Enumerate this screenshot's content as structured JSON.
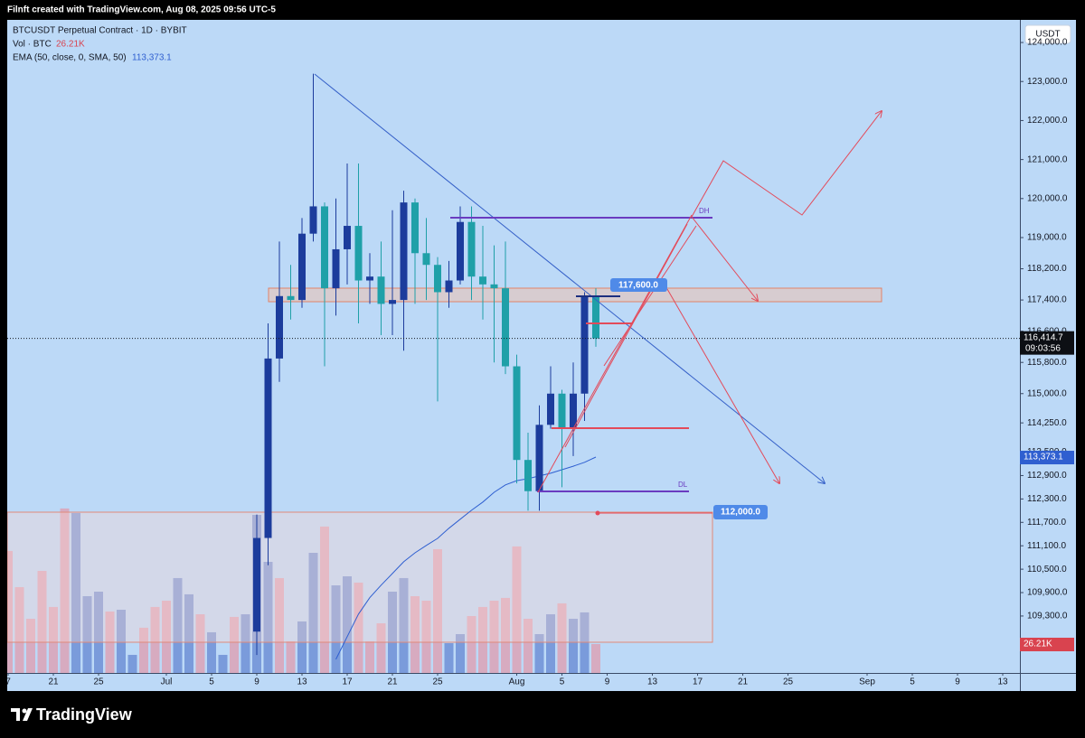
{
  "header": {
    "credit": "Filnft created with TradingView.com, Aug 08, 2025 09:56 UTC-5",
    "brand": "TradingView"
  },
  "chart_data": {
    "type": "candlestick",
    "title": "BTCUSDT Perpetual Contract · 1D · BYBIT",
    "currency": "USDT",
    "up_color": "#1c3c9c",
    "down_color": "#1fa0a8",
    "x": [
      8,
      9,
      10,
      11,
      12,
      13,
      14,
      15,
      16,
      17,
      18,
      19,
      20,
      21,
      22,
      23,
      24,
      25,
      26,
      27,
      28,
      29,
      30,
      31,
      32,
      33,
      34,
      35,
      36,
      37,
      38
    ],
    "open": [
      108900,
      111300,
      115900,
      117500,
      117400,
      119100,
      119800,
      117700,
      118700,
      119300,
      117900,
      118000,
      117300,
      117400,
      119900,
      118600,
      118300,
      117600,
      117900,
      119400,
      118000,
      117800,
      117700,
      115700,
      113300,
      112500,
      114200,
      115000,
      114100,
      115000,
      117500
    ],
    "high": [
      111900,
      116800,
      118900,
      118300,
      119500,
      123200,
      119900,
      120000,
      120900,
      120900,
      118600,
      118900,
      119700,
      120200,
      120000,
      119500,
      118500,
      118400,
      119800,
      119800,
      119300,
      118800,
      118900,
      116000,
      114000,
      114700,
      115700,
      115100,
      115800,
      117600,
      117700
    ],
    "low": [
      108300,
      110600,
      115300,
      116900,
      117200,
      118900,
      115700,
      117000,
      117800,
      116800,
      117300,
      116500,
      116500,
      116100,
      117300,
      117400,
      114800,
      117200,
      117800,
      117400,
      116900,
      115800,
      115500,
      112700,
      112000,
      112000,
      114100,
      112600,
      113400,
      114300,
      116200
    ],
    "close": [
      111300,
      115900,
      117500,
      117400,
      119100,
      119800,
      117700,
      118700,
      119300,
      117900,
      118000,
      117300,
      117400,
      119900,
      118600,
      118300,
      117600,
      117900,
      119400,
      118000,
      117800,
      117700,
      115700,
      113300,
      112500,
      114200,
      115000,
      114100,
      115000,
      117500,
      116414.7
    ],
    "last_price_label": "116,414.7",
    "countdown": "09:03:56",
    "ema": {
      "name": "EMA (50, close, 0, SMA, 50)",
      "color": "#2f5fd0",
      "x": [
        15,
        16,
        17,
        18,
        19,
        20,
        21,
        22,
        23,
        24,
        25,
        26,
        27,
        28,
        29,
        30,
        31,
        32,
        33,
        34,
        35,
        36,
        37,
        38
      ],
      "values": [
        108190,
        108770,
        109350,
        109770,
        110090,
        110390,
        110690,
        110920,
        111110,
        111290,
        111550,
        111780,
        112010,
        112220,
        112470,
        112660,
        112770,
        112820,
        112890,
        112960,
        113050,
        113140,
        113240,
        113373.1
      ],
      "last_label": "113,373.1"
    },
    "volume": {
      "name": "Vol · BTC",
      "last_label": "26.21K",
      "ylim": [
        0,
        592000
      ],
      "x": [
        -14,
        -13,
        -12,
        -11,
        -10,
        -9,
        -8,
        -7,
        -6,
        -5,
        -4,
        -3,
        -2,
        -1,
        0,
        1,
        2,
        3,
        4,
        5,
        6,
        7,
        8,
        9,
        10,
        11,
        12,
        13,
        14,
        15,
        16,
        17,
        18,
        19,
        20,
        21,
        22,
        23,
        24,
        25,
        26,
        27,
        28,
        29,
        30,
        31,
        32,
        33,
        34,
        35,
        36,
        37,
        38
      ],
      "values": [
        110600,
        77800,
        49100,
        92500,
        59800,
        149100,
        145000,
        69600,
        73700,
        55700,
        57300,
        16400,
        41000,
        59800,
        65500,
        86000,
        71300,
        53200,
        36900,
        16400,
        50800,
        53200,
        143300,
        100700,
        86000,
        28700,
        46700,
        108900,
        132700,
        79400,
        87600,
        81900,
        28700,
        45000,
        73700,
        86000,
        69600,
        65500,
        112200,
        27000,
        35200,
        51600,
        59800,
        65500,
        68000,
        114700,
        49100,
        35200,
        53200,
        63100,
        49100,
        54900,
        26210
      ],
      "colors": [
        "#dca2b6",
        "#dca2b6",
        "#dca2b6",
        "#dca2b6",
        "#dca2b6",
        "#dca2b6",
        "#6f8fd6",
        "#6f8fd6",
        "#6f8fd6",
        "#dca2b6",
        "#6f8fd6",
        "#6f8fd6",
        "#dca2b6",
        "#dca2b6",
        "#dca2b6",
        "#6f8fd6",
        "#6f8fd6",
        "#dca2b6",
        "#6f8fd6",
        "#6f8fd6",
        "#dca2b6",
        "#6f8fd6",
        "#6f8fd6",
        "#6f8fd6",
        "#dca2b6",
        "#dca2b6",
        "#6f8fd6",
        "#6f8fd6",
        "#dca2b6",
        "#6f8fd6",
        "#6f8fd6",
        "#dca2b6",
        "#dca2b6",
        "#dca2b6",
        "#6f8fd6",
        "#6f8fd6",
        "#dca2b6",
        "#dca2b6",
        "#dca2b6",
        "#6f8fd6",
        "#6f8fd6",
        "#dca2b6",
        "#dca2b6",
        "#dca2b6",
        "#dca2b6",
        "#dca2b6",
        "#dca2b6",
        "#6f8fd6",
        "#6f8fd6",
        "#dca2b6",
        "#6f8fd6",
        "#6f8fd6",
        "#dca2b6"
      ]
    },
    "xlim": [
      -14.08,
      75.52
    ],
    "ylim": [
      107840,
      124580
    ],
    "xticks": [
      {
        "value": -14,
        "label": "7"
      },
      {
        "value": -10,
        "label": "21"
      },
      {
        "value": -6,
        "label": "25"
      },
      {
        "value": 0,
        "label": "Jul"
      },
      {
        "value": 4,
        "label": "5"
      },
      {
        "value": 8,
        "label": "9"
      },
      {
        "value": 12,
        "label": "13"
      },
      {
        "value": 16,
        "label": "17"
      },
      {
        "value": 20,
        "label": "21"
      },
      {
        "value": 24,
        "label": "25"
      },
      {
        "value": 31,
        "label": "Aug"
      },
      {
        "value": 35,
        "label": "5"
      },
      {
        "value": 39,
        "label": "9"
      },
      {
        "value": 43,
        "label": "13"
      },
      {
        "value": 47,
        "label": "17"
      },
      {
        "value": 51,
        "label": "21"
      },
      {
        "value": 55,
        "label": "25"
      },
      {
        "value": 62,
        "label": "Sep"
      },
      {
        "value": 66,
        "label": "5"
      },
      {
        "value": 70,
        "label": "9"
      },
      {
        "value": 74,
        "label": "13"
      }
    ],
    "yticks": [
      {
        "value": 124000,
        "label": "124,000.0"
      },
      {
        "value": 123000,
        "label": "123,000.0"
      },
      {
        "value": 122000,
        "label": "122,000.0"
      },
      {
        "value": 121000,
        "label": "121,000.0"
      },
      {
        "value": 120000,
        "label": "120,000.0"
      },
      {
        "value": 119000,
        "label": "119,000.0"
      },
      {
        "value": 118200,
        "label": "118,200.0"
      },
      {
        "value": 117400,
        "label": "117,400.0"
      },
      {
        "value": 116600,
        "label": "116,600.0"
      },
      {
        "value": 115800,
        "label": "115,800.0"
      },
      {
        "value": 115000,
        "label": "115,000.0"
      },
      {
        "value": 114250,
        "label": "114,250.0"
      },
      {
        "value": 113500,
        "label": "113,500.0"
      },
      {
        "value": 112900,
        "label": "112,900.0"
      },
      {
        "value": 112300,
        "label": "112,300.0"
      },
      {
        "value": 111700,
        "label": "111,700.0"
      },
      {
        "value": 111100,
        "label": "111,100.0"
      },
      {
        "value": 110500,
        "label": "110,500.0"
      },
      {
        "value": 109900,
        "label": "109,900.0"
      },
      {
        "value": 109300,
        "label": "109,300.0"
      }
    ],
    "annotations": {
      "tags": [
        "117,600.0",
        "112,000.0"
      ],
      "levels": [
        "DH",
        "DL"
      ]
    }
  }
}
